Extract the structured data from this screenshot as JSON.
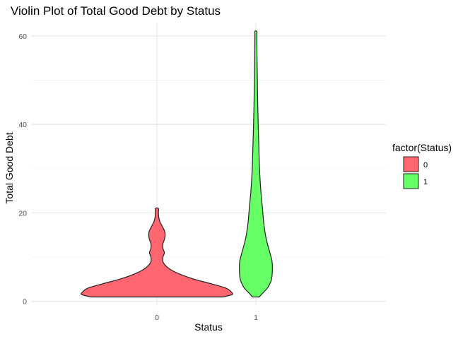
{
  "chart_data": {
    "type": "violin",
    "title": "Violin Plot of Total Good Debt by Status",
    "xlabel": "Status",
    "ylabel": "Total Good Debt",
    "categories": [
      "0",
      "1"
    ],
    "ylim": [
      -1,
      63
    ],
    "yticks": [
      0,
      20,
      40,
      60
    ],
    "ytick_labels": [
      "0",
      "20",
      "40",
      "60"
    ],
    "grid": true,
    "legend": {
      "title": "factor(Status)",
      "placement": "right",
      "entries": [
        "0",
        "1"
      ]
    },
    "series": [
      {
        "category": "0",
        "color": "#FF6670",
        "range": [
          1,
          21
        ],
        "density_profile": [
          [
            1,
            0.88
          ],
          [
            1.5,
            1.0
          ],
          [
            2,
            1.0
          ],
          [
            3,
            0.92
          ],
          [
            4,
            0.72
          ],
          [
            5,
            0.5
          ],
          [
            6,
            0.33
          ],
          [
            7,
            0.2
          ],
          [
            8,
            0.12
          ],
          [
            9,
            0.08
          ],
          [
            10,
            0.08
          ],
          [
            11,
            0.1
          ],
          [
            12,
            0.08
          ],
          [
            13,
            0.08
          ],
          [
            14,
            0.1
          ],
          [
            15,
            0.11
          ],
          [
            16,
            0.1
          ],
          [
            17,
            0.07
          ],
          [
            18,
            0.04
          ],
          [
            19,
            0.025
          ],
          [
            20,
            0.02
          ],
          [
            21,
            0.02
          ]
        ]
      },
      {
        "category": "1",
        "color": "#66FF66",
        "range": [
          1,
          61
        ],
        "density_profile": [
          [
            1,
            0.2
          ],
          [
            2,
            0.45
          ],
          [
            3,
            0.7
          ],
          [
            4,
            0.85
          ],
          [
            5,
            0.95
          ],
          [
            7,
            1.0
          ],
          [
            9,
            0.98
          ],
          [
            11,
            0.85
          ],
          [
            13,
            0.7
          ],
          [
            15,
            0.58
          ],
          [
            18,
            0.47
          ],
          [
            21,
            0.4
          ],
          [
            25,
            0.3
          ],
          [
            30,
            0.22
          ],
          [
            35,
            0.18
          ],
          [
            40,
            0.14
          ],
          [
            45,
            0.11
          ],
          [
            50,
            0.09
          ],
          [
            55,
            0.07
          ],
          [
            60,
            0.06
          ],
          [
            61,
            0.06
          ]
        ]
      }
    ]
  }
}
